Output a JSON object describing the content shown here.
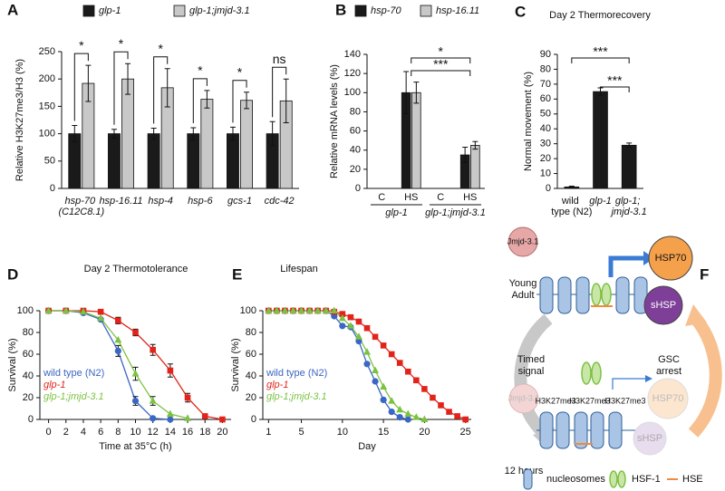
{
  "panel_labels": [
    "A",
    "B",
    "C",
    "D",
    "E",
    "F"
  ],
  "chart_data": [
    {
      "type": "bar",
      "ylabel": "Relative H3K27me3/H3 (%)",
      "categories": [
        "hsp-70 (C12C8.1)",
        "hsp-16.11",
        "hsp-4",
        "hsp-6",
        "gcs-1",
        "cdc-42"
      ],
      "series": [
        {
          "name": "glp-1",
          "color": "#1a1a1a",
          "values": [
            100,
            100,
            100,
            100,
            100,
            100
          ],
          "errors": [
            15,
            8,
            10,
            11,
            12,
            22
          ]
        },
        {
          "name": "glp-1;jmjd-3.1",
          "color": "#c8c8c8",
          "values": [
            192,
            200,
            184,
            163,
            161,
            160
          ],
          "errors": [
            33,
            28,
            35,
            16,
            15,
            40
          ]
        }
      ],
      "ylim": [
        0,
        250
      ],
      "yticks": [
        0,
        50,
        100,
        150,
        200,
        250
      ],
      "significance": [
        "*",
        "*",
        "*",
        "*",
        "*",
        "ns"
      ]
    },
    {
      "type": "bar",
      "ylabel": "Relative mRNA levels (%)",
      "categories": [
        "C",
        "HS",
        "C",
        "HS"
      ],
      "groups": [
        "glp-1",
        "glp-1;jmjd-3.1"
      ],
      "series": [
        {
          "name": "hsp-70",
          "color": "#1a1a1a",
          "values": [
            0,
            100,
            0,
            35
          ],
          "errors": [
            0,
            22,
            0,
            8
          ]
        },
        {
          "name": "hsp-16.11",
          "color": "#c8c8c8",
          "values": [
            0,
            100,
            0,
            45
          ],
          "errors": [
            0,
            11,
            0,
            4
          ]
        }
      ],
      "ylim": [
        0,
        140
      ],
      "yticks": [
        0,
        20,
        40,
        60,
        80,
        100,
        120,
        140
      ],
      "significance": [
        "*",
        "***"
      ]
    },
    {
      "type": "bar",
      "title": "Day 2 Thermorecovery",
      "ylabel": "Normal movement (%)",
      "categories": [
        "wild type (N2)",
        "glp-1",
        "glp-1; jmjd-3.1"
      ],
      "series": [
        {
          "color": "#1a1a1a",
          "values": [
            1,
            65,
            29
          ],
          "errors": [
            0.5,
            2.5,
            1.5
          ]
        }
      ],
      "ylim": [
        0,
        90
      ],
      "yticks": [
        0,
        10,
        20,
        30,
        40,
        50,
        60,
        70,
        80,
        90
      ],
      "significance": [
        "***",
        "***"
      ]
    },
    {
      "type": "line",
      "title": "Day 2 Thermotolerance",
      "xlabel": "Time at 35°C (h)",
      "ylabel": "Survival (%)",
      "xlim": [
        -1,
        21
      ],
      "xticks": [
        0,
        2,
        4,
        6,
        8,
        10,
        12,
        14,
        16,
        18,
        20
      ],
      "ylim": [
        0,
        100
      ],
      "yticks": [
        0,
        20,
        40,
        60,
        80,
        100
      ],
      "series": [
        {
          "name": "wild type (N2)",
          "color": "#3a66c4",
          "marker": "circle",
          "x": [
            0,
            2,
            4,
            6,
            8,
            10,
            12,
            14
          ],
          "values": [
            100,
            100,
            98,
            92,
            63,
            17,
            1,
            0
          ],
          "errors": [
            null,
            null,
            null,
            null,
            5,
            4,
            null,
            null
          ]
        },
        {
          "name": "glp-1",
          "color": "#e2231a",
          "marker": "square",
          "x": [
            0,
            2,
            4,
            6,
            8,
            10,
            12,
            14,
            16,
            18,
            20
          ],
          "values": [
            100,
            100,
            100,
            99,
            91,
            80,
            64,
            45,
            20,
            3,
            0
          ],
          "errors": [
            null,
            null,
            null,
            null,
            3,
            3,
            5,
            6,
            4,
            null,
            null
          ]
        },
        {
          "name": "glp-1;jmjd-3.1",
          "color": "#7cc242",
          "marker": "triangle",
          "x": [
            0,
            2,
            4,
            6,
            8,
            10,
            12,
            14,
            16
          ],
          "values": [
            100,
            100,
            99,
            93,
            73,
            42,
            17,
            5,
            1
          ],
          "errors": [
            null,
            null,
            null,
            null,
            null,
            6,
            4,
            null,
            null
          ]
        }
      ]
    },
    {
      "type": "line",
      "title": "Lifespan",
      "xlabel": "Day",
      "ylabel": "Survival (%)",
      "xlim": [
        0.3,
        25.7
      ],
      "xticks": [
        1,
        5,
        10,
        15,
        20,
        25
      ],
      "ylim": [
        0,
        100
      ],
      "yticks": [
        0,
        20,
        40,
        60,
        80,
        100
      ],
      "series": [
        {
          "name": "wild type (N2)",
          "color": "#3a66c4",
          "marker": "circle",
          "x": [
            1,
            2,
            3,
            4,
            5,
            6,
            7,
            8,
            9,
            10,
            11,
            12,
            13,
            14,
            15,
            16,
            17,
            18
          ],
          "values": [
            100,
            100,
            100,
            100,
            100,
            100,
            100,
            100,
            95,
            86,
            85,
            72,
            51,
            35,
            18,
            7,
            2,
            0
          ]
        },
        {
          "name": "glp-1",
          "color": "#e2231a",
          "marker": "square",
          "x": [
            1,
            2,
            3,
            4,
            5,
            6,
            7,
            8,
            9,
            10,
            11,
            12,
            13,
            14,
            15,
            16,
            17,
            18,
            19,
            20,
            21,
            22,
            23,
            24,
            25
          ],
          "values": [
            100,
            100,
            100,
            100,
            100,
            100,
            100,
            100,
            99,
            97,
            94,
            90,
            84,
            76,
            68,
            60,
            52,
            44,
            36,
            28,
            20,
            13,
            7,
            3,
            0
          ]
        },
        {
          "name": "glp-1;jmjd-3.1",
          "color": "#7cc242",
          "marker": "triangle",
          "x": [
            1,
            2,
            3,
            4,
            5,
            6,
            7,
            8,
            9,
            10,
            11,
            12,
            13,
            14,
            15,
            16,
            17,
            18,
            19,
            20
          ],
          "values": [
            100,
            100,
            100,
            100,
            100,
            100,
            100,
            100,
            100,
            93,
            86,
            76,
            62,
            45,
            30,
            17,
            9,
            5,
            2,
            0
          ]
        }
      ]
    }
  ],
  "diagram": {
    "top_enzyme": "Jmjd-3.1",
    "stage": [
      "Young",
      "Adult"
    ],
    "top_proteins": [
      "HSP70",
      "sHSP"
    ],
    "left_arrow": [
      "Timed",
      "signal"
    ],
    "right_arrow": [
      "GSC",
      "arrest"
    ],
    "bottom_enzyme": "Jmjd-3.1",
    "marks": [
      "H3K27me3",
      "H3K27me3",
      "H3K27me3"
    ],
    "bottom_proteins": [
      "HSP70",
      "sHSP"
    ],
    "time": "12 hours",
    "legend": [
      "nucleosomes",
      "HSF-1",
      "HSE"
    ]
  }
}
